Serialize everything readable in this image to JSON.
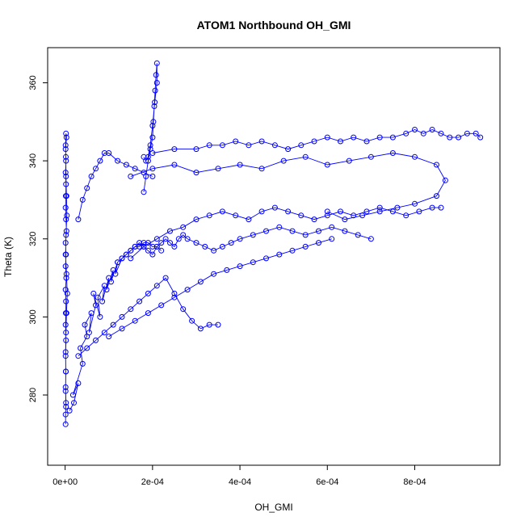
{
  "chart_data": {
    "type": "scatter",
    "title": "ATOM1 Northbound OH_GMI",
    "xlabel": "OH_GMI",
    "ylabel": "Theta (K)",
    "xlim": [
      -4e-05,
      0.000995
    ],
    "ylim": [
      262,
      369
    ],
    "x_ticks": [
      0,
      0.0002,
      0.0004,
      0.0006,
      0.0008
    ],
    "x_tick_labels": [
      "0e+00",
      "2e-04",
      "4e-04",
      "6e-04",
      "8e-04"
    ],
    "y_ticks": [
      280,
      300,
      320,
      340,
      360
    ],
    "y_tick_labels": [
      "280",
      "300",
      "320",
      "340",
      "360"
    ],
    "grid": false,
    "legend": "none",
    "series_color": "#0000ff",
    "style": "points-connected-by-lines",
    "series": [
      {
        "x": [
          1e-06,
          1e-06,
          2e-06,
          1e-06,
          1.5e-06,
          1e-06,
          2e-06,
          1e-06,
          1.5e-06,
          2e-06,
          1e-06,
          2.5e-06,
          1e-06,
          2e-06,
          1e-06,
          3e-06,
          2e-06,
          1e-06,
          1.5e-06,
          2e-06,
          1e-06,
          2e-06,
          1e-06,
          3e-06,
          2e-06,
          1e-06,
          1.5e-06,
          2e-06,
          3e-06,
          4e-06,
          2e-06,
          1e-06,
          3e-06,
          5e-06,
          3e-06,
          2e-06,
          1e-06,
          1.5e-06,
          1e-06,
          2e-06
        ],
        "y": [
          272.5,
          275,
          278,
          282,
          286,
          290,
          294,
          298,
          301,
          304,
          307,
          310,
          313,
          316,
          319,
          322,
          325,
          328,
          331,
          334,
          337,
          340,
          343,
          346,
          347,
          344,
          341,
          336,
          331,
          326,
          321,
          316,
          311,
          306,
          301,
          296,
          291,
          286,
          281,
          277
        ]
      },
      {
        "x": [
          1e-05,
          2e-05,
          3e-05,
          1.8e-05,
          4e-05,
          3.5e-05,
          5e-05,
          4.5e-05,
          6e-05,
          5.5e-05,
          7e-05,
          6.5e-05,
          8e-05,
          7.5e-05,
          9e-05,
          8.5e-05,
          0.0001,
          9.5e-05,
          0.00011,
          0.000105,
          0.00012,
          0.000115,
          0.00013,
          0.00014,
          0.00015,
          0.00016,
          0.00017,
          0.00018,
          0.00019,
          0.0002,
          0.00021,
          0.00022
        ],
        "y": [
          276,
          278,
          283,
          280,
          288,
          292,
          295,
          298,
          301,
          296,
          303,
          306,
          300,
          305,
          308,
          304,
          310,
          307,
          312,
          309,
          314,
          311,
          315,
          316,
          317,
          318,
          318,
          319,
          319,
          318,
          318,
          317
        ]
      },
      {
        "x": [
          0.00012,
          0.00013,
          0.00014,
          0.00015,
          0.00016,
          0.00017,
          0.00018,
          0.00019,
          0.0002,
          0.00021,
          0.00022,
          0.00023,
          0.00024,
          0.00025,
          0.00026,
          0.00027,
          0.00028,
          0.0003,
          0.00032,
          0.00034,
          0.00036,
          0.00038,
          0.0004,
          0.00043,
          0.00046,
          0.00049,
          0.00052,
          0.00055,
          0.00058,
          0.00061,
          0.00064,
          0.00067,
          0.0007
        ],
        "y": [
          314,
          315,
          316,
          317,
          318,
          319,
          318,
          317,
          316,
          318,
          319,
          320,
          319,
          318,
          320,
          321,
          320,
          319,
          318,
          317,
          318,
          319,
          320,
          321,
          322,
          323,
          322,
          321,
          322,
          323,
          322,
          321,
          320
        ]
      },
      {
        "x": [
          0.00018,
          0.000185,
          0.00019,
          0.000195,
          0.0002,
          0.000202,
          0.000204,
          0.000206,
          0.000208,
          0.00021,
          0.00021,
          0.000205,
          0.0002,
          0.000195,
          0.00019,
          0.000185,
          0.00018
        ],
        "y": [
          332,
          336,
          340,
          343,
          346,
          350,
          354,
          358,
          362,
          365,
          360,
          355,
          349,
          344,
          341,
          340,
          341
        ]
      },
      {
        "x": [
          0.0002,
          0.00025,
          0.0003,
          0.00033,
          0.00036,
          0.00039,
          0.00042,
          0.00045,
          0.00048,
          0.00051,
          0.00054,
          0.00057,
          0.0006,
          0.00063,
          0.00066,
          0.00069,
          0.00072,
          0.00075,
          0.00078,
          0.0008,
          0.00082,
          0.00084,
          0.00086,
          0.00088,
          0.0009,
          0.00092,
          0.00094,
          0.00095
        ],
        "y": [
          342,
          343,
          343,
          344,
          344,
          345,
          344,
          345,
          344,
          343,
          344,
          345,
          346,
          345,
          346,
          345,
          346,
          346,
          347,
          348,
          347,
          348,
          347,
          346,
          346,
          347,
          347,
          346
        ]
      },
      {
        "x": [
          0.00015,
          0.0002,
          0.00025,
          0.0003,
          0.00035,
          0.0004,
          0.00045,
          0.0005,
          0.00055,
          0.0006,
          0.00065,
          0.0007,
          0.00075,
          0.0008,
          0.00085,
          0.00087,
          0.00085,
          0.0008,
          0.00076,
          0.00072,
          0.00068,
          0.00064,
          0.0006
        ],
        "y": [
          336,
          338,
          339,
          337,
          338,
          339,
          338,
          340,
          341,
          339,
          340,
          341,
          342,
          341,
          339,
          335,
          331,
          329,
          328,
          327,
          326,
          325,
          327
        ]
      },
      {
        "x": [
          0.00015,
          0.00018,
          0.00021,
          0.00024,
          0.00027,
          0.0003,
          0.00033,
          0.00036,
          0.00039,
          0.00042,
          0.00045,
          0.00048,
          0.00051,
          0.00054,
          0.00057,
          0.0006,
          0.00063,
          0.00066,
          0.00069,
          0.00072,
          0.00075,
          0.00078,
          0.00081,
          0.00084,
          0.00086
        ],
        "y": [
          315,
          318,
          320,
          322,
          323,
          325,
          326,
          327,
          326,
          325,
          327,
          328,
          327,
          326,
          325,
          326,
          327,
          326,
          327,
          328,
          327,
          326,
          327,
          328,
          328
        ]
      },
      {
        "x": [
          0.0001,
          0.00013,
          0.00016,
          0.00019,
          0.00022,
          0.00025,
          0.00028,
          0.00031,
          0.00034,
          0.00037,
          0.0004,
          0.00043,
          0.00046,
          0.00049,
          0.00052,
          0.00055,
          0.00058,
          0.00061
        ],
        "y": [
          295,
          297,
          299,
          301,
          303,
          305,
          307,
          309,
          311,
          312,
          313,
          314,
          315,
          316,
          317,
          318,
          319,
          320
        ]
      },
      {
        "x": [
          3e-05,
          5e-05,
          7e-05,
          9e-05,
          0.00011,
          0.00013,
          0.00015,
          0.00017,
          0.00019,
          0.00021,
          0.00023,
          0.00025,
          0.00027,
          0.00029,
          0.00031,
          0.00033,
          0.00035
        ],
        "y": [
          290,
          292,
          294,
          296,
          298,
          300,
          302,
          304,
          306,
          308,
          310,
          306,
          302,
          299,
          297,
          298,
          298
        ]
      },
      {
        "x": [
          3e-05,
          4e-05,
          5e-05,
          6e-05,
          7e-05,
          8e-05,
          9e-05,
          0.0001,
          0.00012,
          0.00014,
          0.00016,
          0.00018,
          0.0002
        ],
        "y": [
          325,
          330,
          333,
          336,
          338,
          340,
          342,
          342,
          340,
          339,
          338,
          337,
          336
        ]
      }
    ]
  }
}
